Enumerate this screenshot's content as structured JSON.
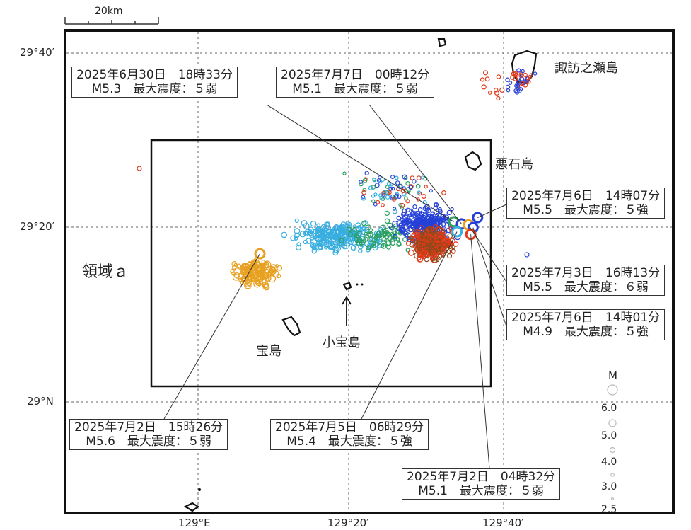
{
  "scale_bar": {
    "label": "20km"
  },
  "latitude_labels": [
    "29°40′",
    "29°20′",
    "29°N"
  ],
  "longitude_labels": [
    "129°E",
    "129°20′",
    "129°40′"
  ],
  "region_label": "領域ａ",
  "places": {
    "suwanosejima": "諏訪之瀬島",
    "akusekijima": "悪石島",
    "takarajima": "宝島",
    "kodakarajima": "小宝島"
  },
  "events": [
    {
      "id": "e0630",
      "line1": "2025年6月30日　18時33分",
      "line2": "M5.3　最大震度：５弱",
      "lon": 129.558,
      "lat": 29.344
    },
    {
      "id": "e0707",
      "line1": "2025年7月7日　00時12分",
      "line2": "M5.1　最大震度：５弱",
      "lon": 129.575,
      "lat": 29.34
    },
    {
      "id": "e0706a",
      "line1": "2025年7月6日　14時07分",
      "line2": "M5.5　最大震度：５強",
      "lon": 129.61,
      "lat": 29.352
    },
    {
      "id": "e0703",
      "line1": "2025年7月3日　16時13分",
      "line2": "M5.5　最大震度：６弱",
      "lon": 129.59,
      "lat": 29.338
    },
    {
      "id": "e0706b",
      "line1": "2025年7月6日　14時01分",
      "line2": "M4.9　最大震度：５強",
      "lon": 129.6,
      "lat": 29.333
    },
    {
      "id": "e0702a",
      "line1": "2025年7月2日　15時26分",
      "line2": "M5.6　最大震度：５弱",
      "lon": 129.135,
      "lat": 29.283
    },
    {
      "id": "e0705",
      "line1": "2025年7月5日　06時29分",
      "line2": "M5.4　最大震度：５強",
      "lon": 129.565,
      "lat": 29.325
    },
    {
      "id": "e0702b",
      "line1": "2025年7月2日　04時32分",
      "line2": "M5.1　最大震度：５弱",
      "lon": 129.595,
      "lat": 29.32
    }
  ],
  "legend": {
    "title": "M",
    "values": [
      "6.0",
      "5.0",
      "4.0",
      "3.0",
      "2.5"
    ]
  },
  "colors": {
    "epicenter_orange": "#e8a020",
    "epicenter_red": "#e03a1a",
    "epicenter_blue": "#2540d8",
    "epicenter_cyan": "#38aee0",
    "epicenter_green": "#2aa060",
    "epicenter_brown": "#8a4a1a",
    "frame": "#111111"
  }
}
